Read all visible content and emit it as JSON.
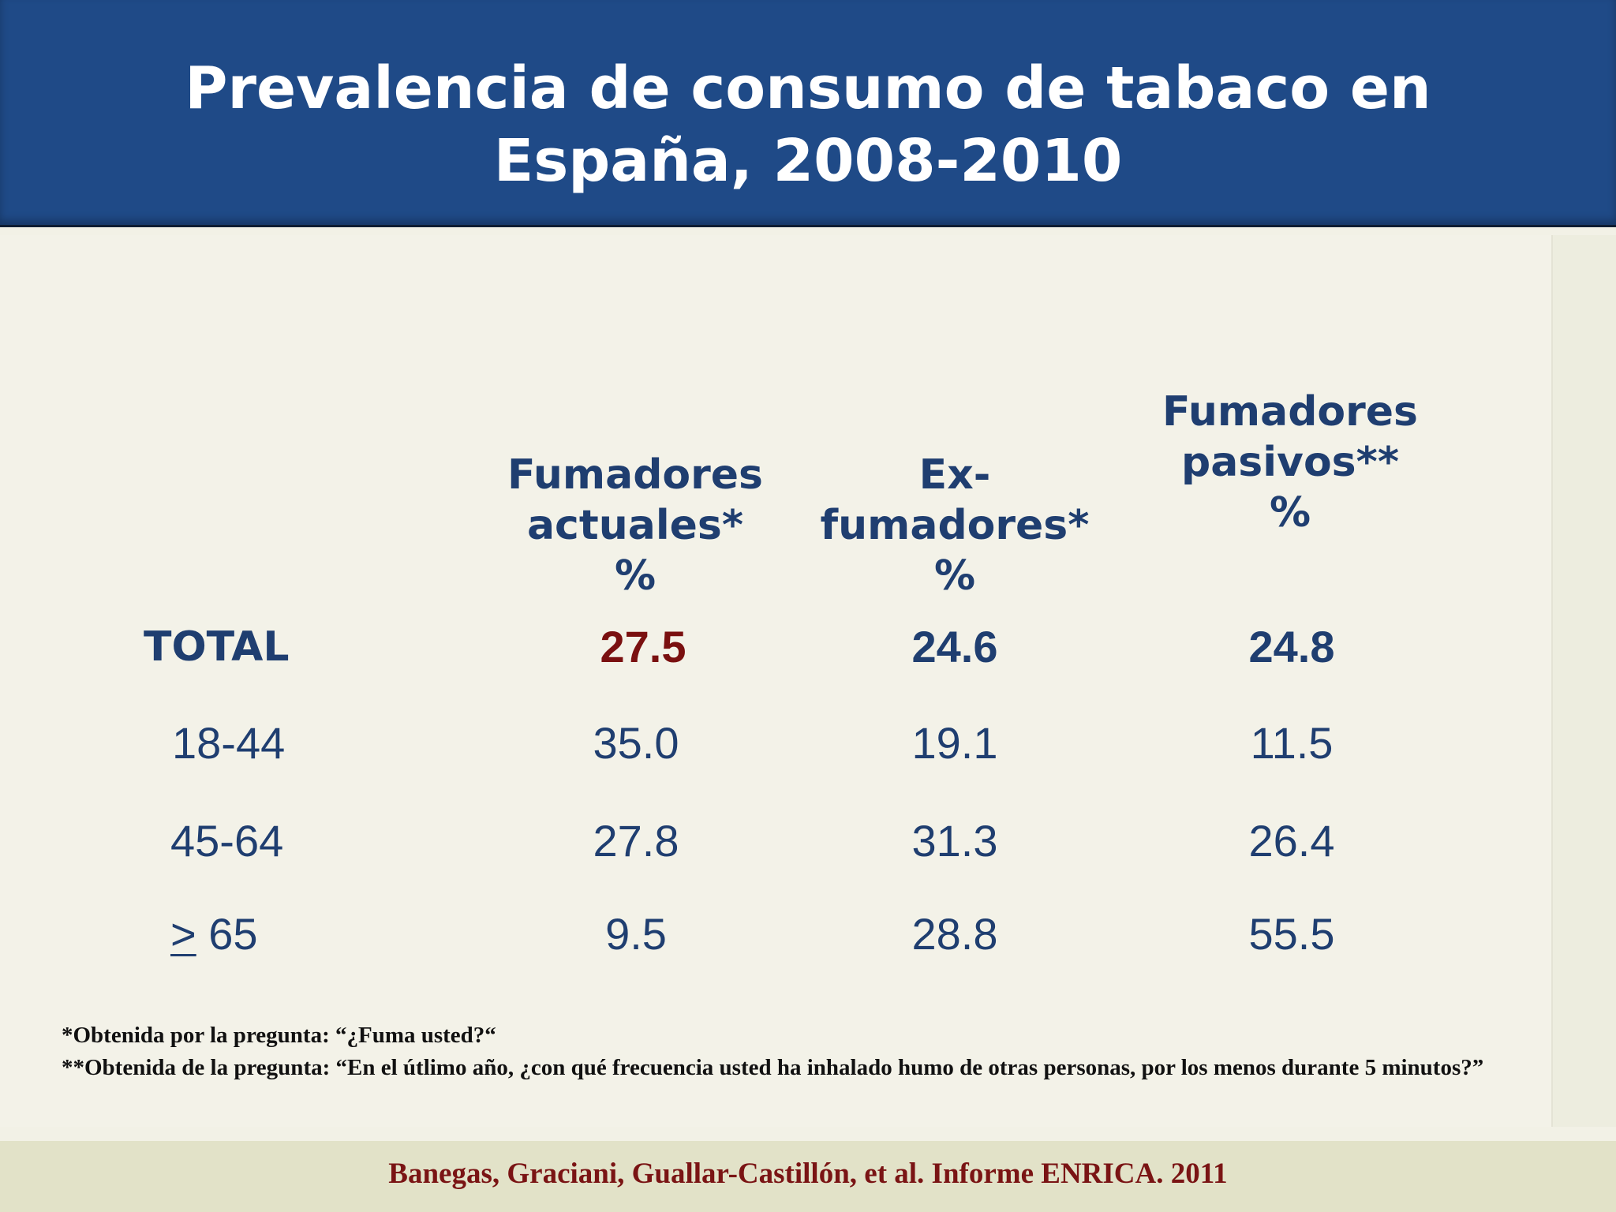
{
  "title": {
    "line1": "Prevalencia de consumo de tabaco en",
    "line2": "España, 2008-2010"
  },
  "table": {
    "headers": [
      {
        "lines": [
          "Fumadores",
          "actuales*",
          "%"
        ]
      },
      {
        "lines": [
          "Ex-",
          "fumadores*",
          "%"
        ]
      },
      {
        "lines": [
          "Fumadores",
          "pasivos**",
          "%"
        ]
      }
    ],
    "rows": [
      {
        "label": "TOTAL",
        "values": [
          "27.5",
          "24.6",
          "24.8"
        ]
      },
      {
        "label": "18-44",
        "values": [
          "35.0",
          "19.1",
          "11.5"
        ]
      },
      {
        "label": "45-64",
        "values": [
          "27.8",
          "31.3",
          "26.4"
        ]
      },
      {
        "label_symbol": ">",
        "label_rest": " 65",
        "values": [
          "9.5",
          "28.8",
          "55.5"
        ]
      }
    ]
  },
  "footnotes": {
    "note1": "*Obtenida por la pregunta: “¿Fuma usted?“",
    "note2": "**Obtenida de la pregunta: “En el útlimo año, ¿con qué frecuencia usted ha inhalado humo de otras personas, por los menos durante 5 minutos?”"
  },
  "source": "Banegas, Graciani, Guallar-Castillón, et al. Informe ENRICA. 2011",
  "colors": {
    "header_bg": "#1f4a87",
    "text_blue": "#1f3e70",
    "highlight_red": "#7a1010",
    "source_red": "#7a1414",
    "content_bg": "#f3f2e8",
    "bottom_bar_bg": "#e2e2c8"
  }
}
